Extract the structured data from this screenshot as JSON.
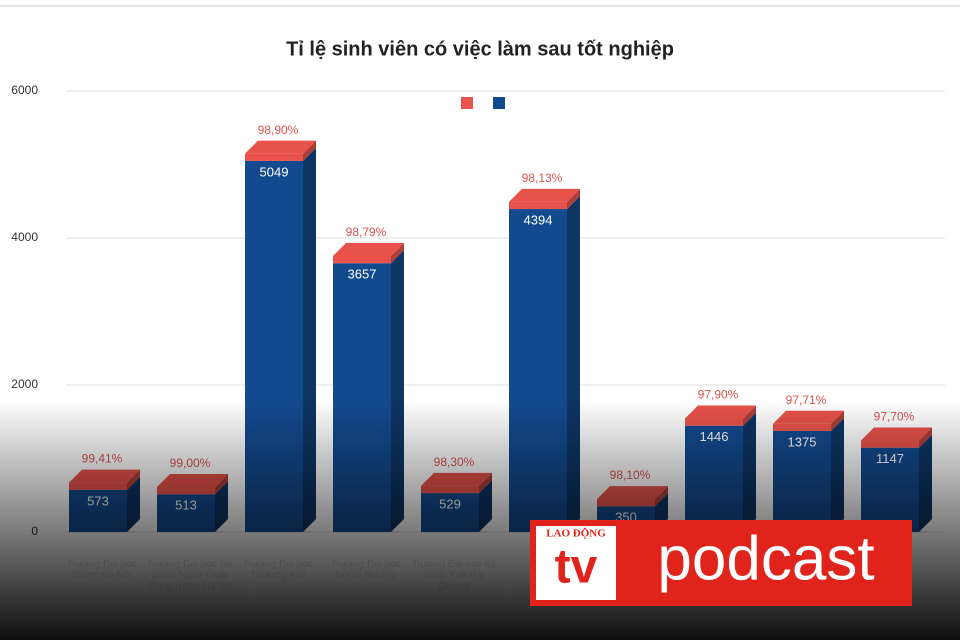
{
  "chart_data": {
    "type": "bar3d-stacked",
    "title": "Tỉ lệ sinh viên có việc làm sau tốt nghiệp",
    "categories": [
      "Trường Đại học Dược Hà Nội",
      "Trường Đại học Sư phạm Nghệ thuật Trung ương Hà Nội",
      "Trường Đại học Thương mại",
      "Trường Đại học Ngoại thương",
      "Trường Đại học Kỹ thuật Y tế Hải Dương",
      "Học",
      null,
      null,
      null,
      null
    ],
    "series": [
      {
        "color": "#e8524a",
        "values": [
          99.41,
          99.0,
          98.9,
          98.79,
          98.3,
          98.13,
          98.1,
          97.9,
          97.71,
          97.7
        ],
        "value_labels": [
          "99,41%",
          "99,00%",
          "98,90%",
          "98,79%",
          "98,30%",
          "98,13%",
          "98,10%",
          "97,90%",
          "97,71%",
          "97,70%"
        ]
      },
      {
        "color": "#134a8e",
        "values": [
          573,
          513,
          5049,
          3657,
          529,
          4394,
          350,
          1446,
          1375,
          1147
        ]
      }
    ],
    "ylim": [
      0,
      6000
    ],
    "yticks": [
      0,
      2000,
      4000,
      6000
    ],
    "grid": true
  },
  "overlay": {
    "brand": "LAO ĐỘNG",
    "channel": "tv",
    "show": "podcast"
  }
}
